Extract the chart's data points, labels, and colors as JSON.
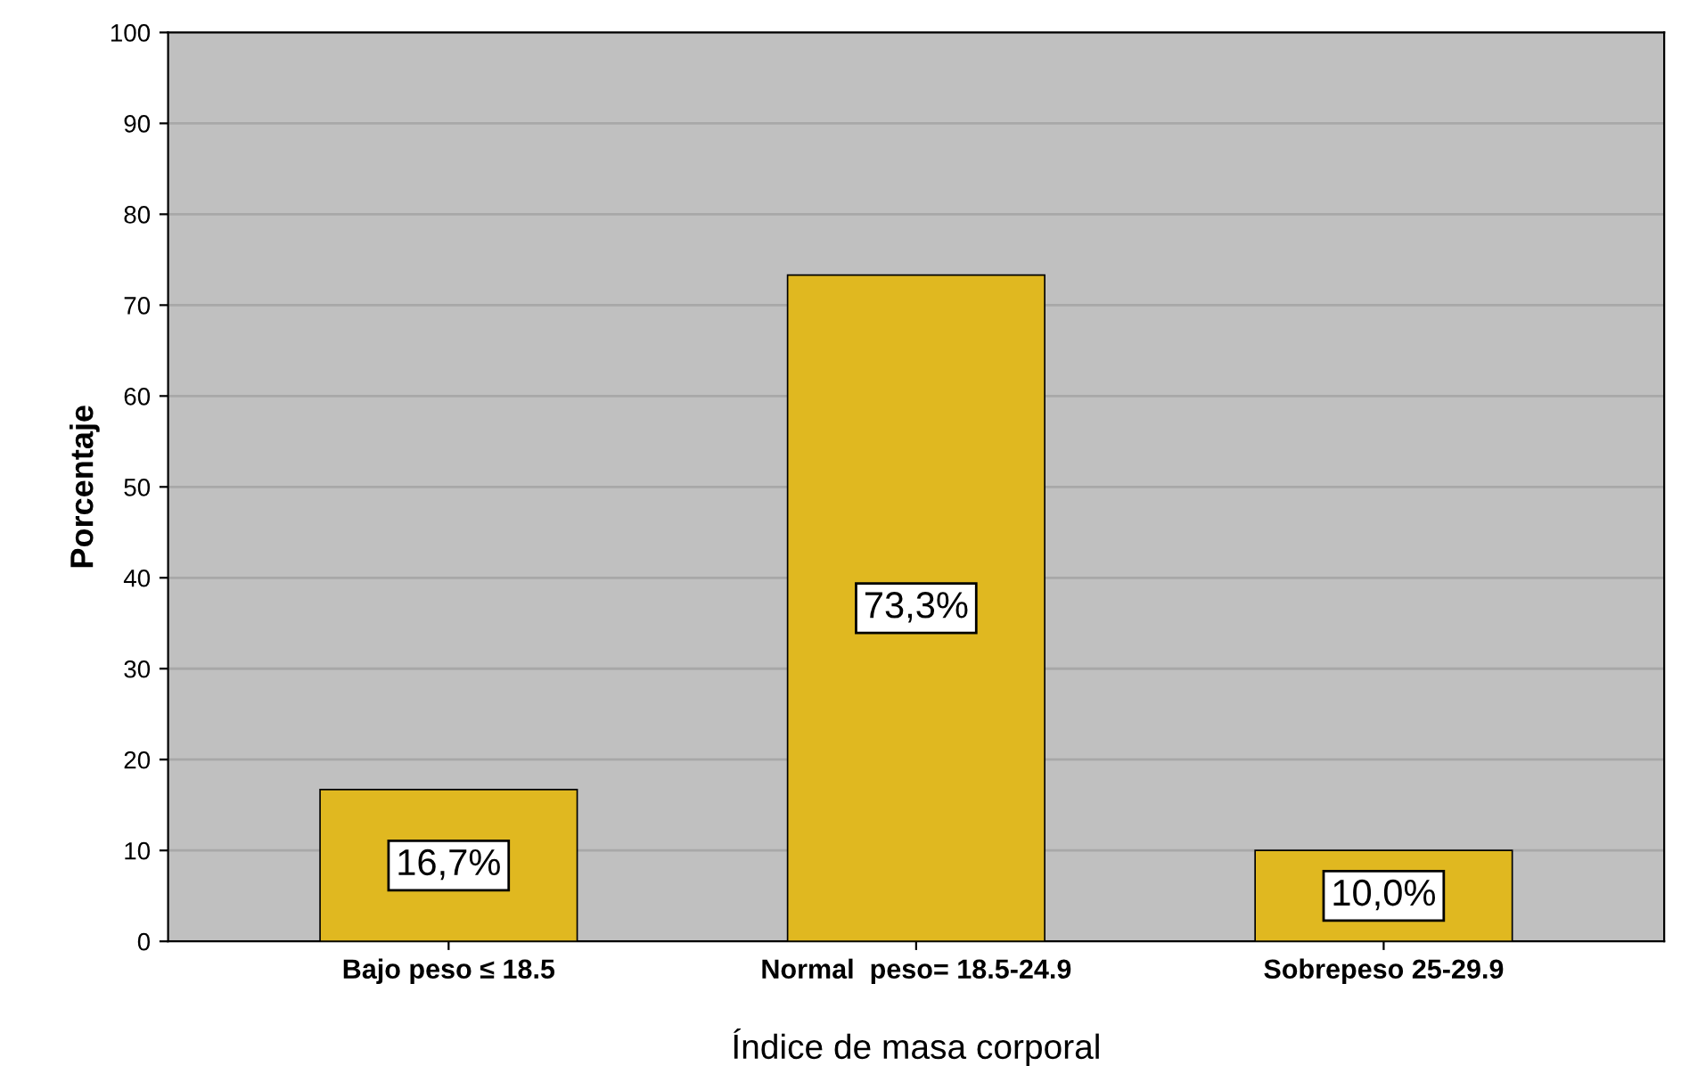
{
  "chart_data": {
    "type": "bar",
    "xlabel": "Índice de masa corporal",
    "ylabel": "Porcentaje",
    "categories": [
      "Bajo peso ≤ 18.5",
      "Normal  peso= 18.5-24.9",
      "Sobrepeso 25-29.9"
    ],
    "values": [
      16.7,
      73.3,
      10.0
    ],
    "value_labels": [
      "16,7%",
      "73,3%",
      "10,0%"
    ],
    "color": "#e0b820",
    "ylim": [
      0,
      100
    ],
    "yticks": [
      0,
      10,
      20,
      30,
      40,
      50,
      60,
      70,
      80,
      90,
      100
    ],
    "grid": "y"
  }
}
